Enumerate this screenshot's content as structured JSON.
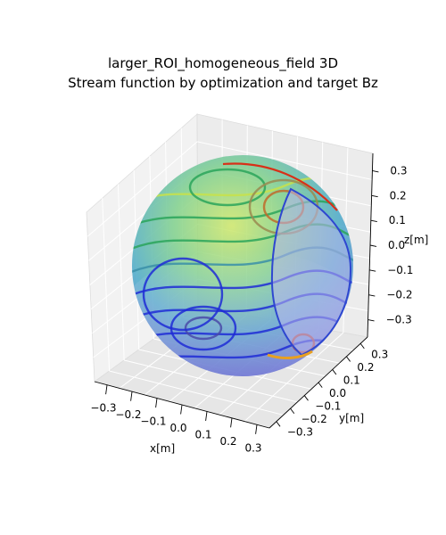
{
  "chart_data": {
    "type": "3d-surface-contour",
    "title": "larger_ROI_homogeneous_field 3D",
    "subtitle": "Stream function by optimization and target Bz",
    "xlabel": "x[m]",
    "ylabel": "y[m]",
    "zlabel": "z[m]",
    "x_ticks": [
      "−0.3",
      "−0.2",
      "−0.1",
      "0.0",
      "0.1",
      "0.2",
      "0.3"
    ],
    "y_ticks": [
      "−0.3",
      "−0.2",
      "−0.1",
      "0.0",
      "0.1",
      "0.2",
      "0.3"
    ],
    "z_ticks": [
      "−0.3",
      "−0.2",
      "−0.1",
      "0.0",
      "0.1",
      "0.2",
      "0.3"
    ],
    "xlim": [
      -0.35,
      0.35
    ],
    "ylim": [
      -0.35,
      0.35
    ],
    "zlim": [
      -0.37,
      0.37
    ],
    "surface": {
      "shape": "sphere",
      "radius": 0.35,
      "colormap": "jet-like",
      "opacity": 0.5
    },
    "grid": true,
    "colors": {
      "low": "#1f2bd6",
      "mid": "#2aa45a",
      "high": "#c8e24a",
      "peak": "#e03a1a"
    }
  }
}
